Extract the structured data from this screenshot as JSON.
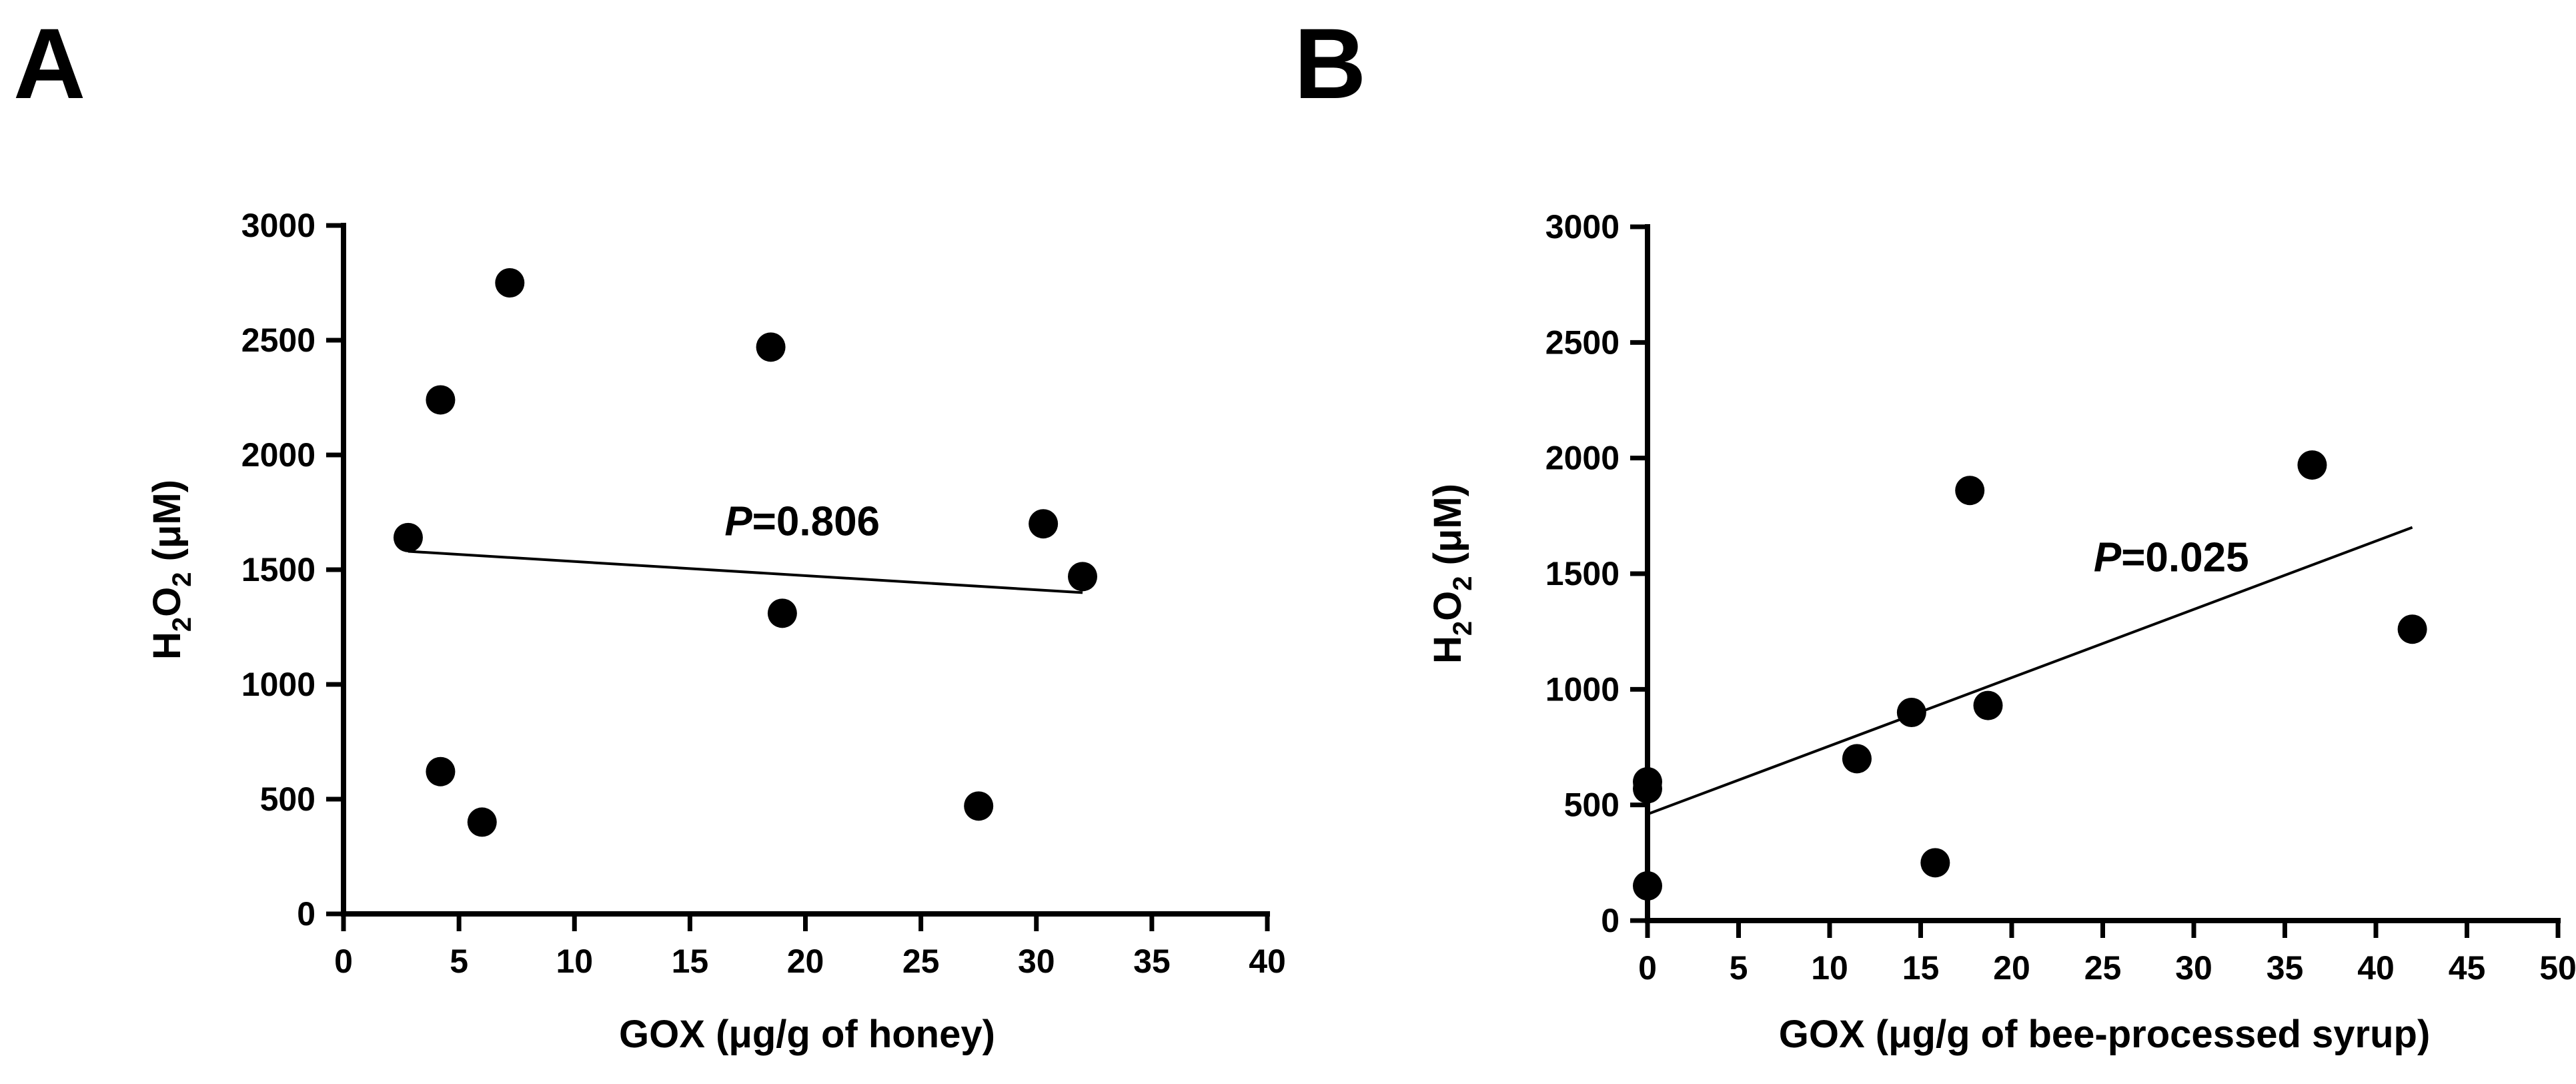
{
  "panels": [
    {
      "letter": "A",
      "chart_data": {
        "type": "scatter",
        "title": "",
        "xlabel_prefix": "GOX (",
        "xlabel_unit": "μg/g of honey)",
        "ylabel_main": "H",
        "ylabel_sub1": "2",
        "ylabel_mid": "O",
        "ylabel_sub2": "2",
        "ylabel_suffix": " (μM)",
        "xlim": [
          0,
          40
        ],
        "ylim": [
          0,
          3000
        ],
        "xticks": [
          0,
          5,
          10,
          15,
          20,
          25,
          30,
          35,
          40
        ],
        "yticks": [
          0,
          500,
          1000,
          1500,
          2000,
          2500,
          3000
        ],
        "points": [
          {
            "x": 2.8,
            "y": 1640
          },
          {
            "x": 4.2,
            "y": 2240
          },
          {
            "x": 4.2,
            "y": 620
          },
          {
            "x": 6.0,
            "y": 400
          },
          {
            "x": 7.2,
            "y": 2750
          },
          {
            "x": 18.5,
            "y": 2470
          },
          {
            "x": 19.0,
            "y": 1310
          },
          {
            "x": 27.5,
            "y": 470
          },
          {
            "x": 30.3,
            "y": 1700
          },
          {
            "x": 32.0,
            "y": 1470
          }
        ],
        "fit_line": {
          "x1": 2.8,
          "y1": 1580,
          "x2": 32.0,
          "y2": 1400
        },
        "annotation_italic": "P",
        "annotation_value": "=0.806",
        "annotation_anchor": {
          "x": 16.5,
          "y": 1650
        }
      }
    },
    {
      "letter": "B",
      "chart_data": {
        "type": "scatter",
        "title": "",
        "xlabel_prefix": "GOX (",
        "xlabel_unit": "μg/g of bee-processed syrup)",
        "ylabel_main": "H",
        "ylabel_sub1": "2",
        "ylabel_mid": "O",
        "ylabel_sub2": "2",
        "ylabel_suffix": " (μM)",
        "xlim": [
          0,
          50
        ],
        "ylim": [
          0,
          3000
        ],
        "xticks": [
          0,
          5,
          10,
          15,
          20,
          25,
          30,
          35,
          40,
          45,
          50
        ],
        "yticks": [
          0,
          500,
          1000,
          1500,
          2000,
          2500,
          3000
        ],
        "points": [
          {
            "x": 0.0,
            "y": 600
          },
          {
            "x": 0.0,
            "y": 570
          },
          {
            "x": 0.0,
            "y": 150
          },
          {
            "x": 11.5,
            "y": 700
          },
          {
            "x": 14.5,
            "y": 900
          },
          {
            "x": 15.8,
            "y": 250
          },
          {
            "x": 17.7,
            "y": 1860
          },
          {
            "x": 18.7,
            "y": 930
          },
          {
            "x": 36.5,
            "y": 1970
          },
          {
            "x": 42.0,
            "y": 1260
          }
        ],
        "fit_line": {
          "x1": 0.0,
          "y1": 460,
          "x2": 42.0,
          "y2": 1700
        },
        "annotation_italic": "P",
        "annotation_value": "=0.025",
        "annotation_anchor": {
          "x": 24.5,
          "y": 1510
        }
      }
    }
  ]
}
